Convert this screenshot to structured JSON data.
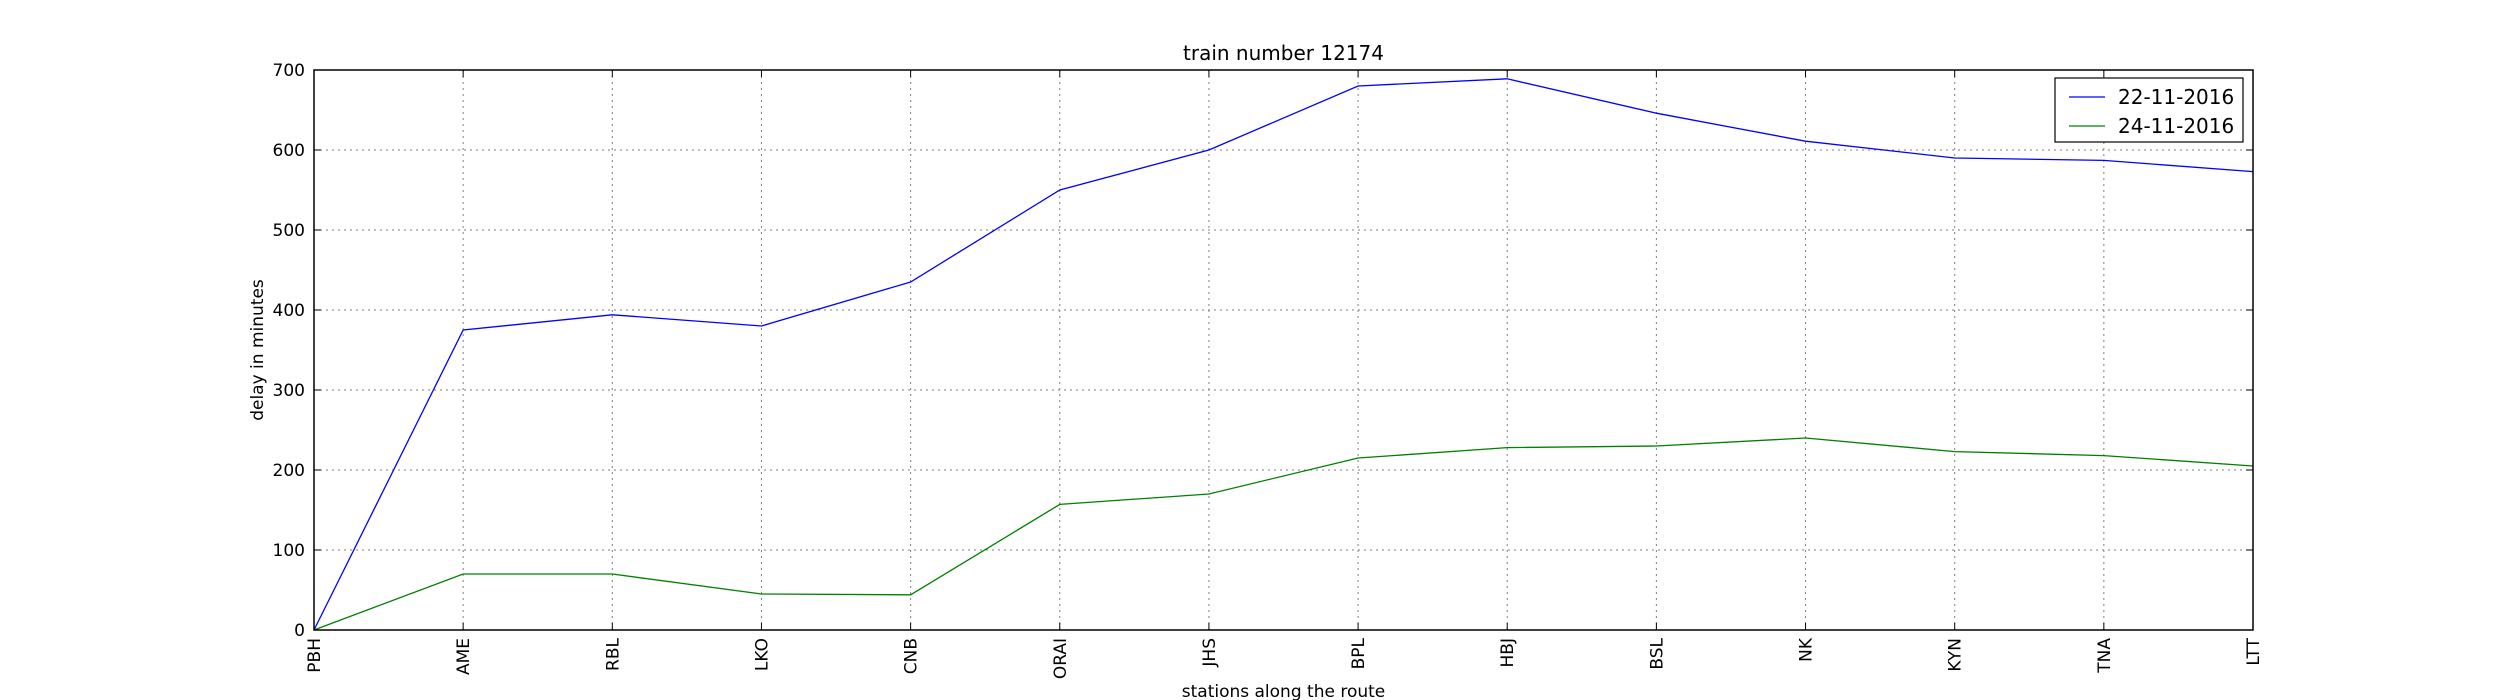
{
  "chart_data": {
    "type": "line",
    "title": "train number 12174",
    "xlabel": "stations along the route",
    "ylabel": "delay in minutes",
    "categories": [
      "PBH",
      "AME",
      "RBL",
      "LKO",
      "CNB",
      "ORAI",
      "JHS",
      "BPL",
      "HBJ",
      "BSL",
      "NK",
      "KYN",
      "TNA",
      "LTT"
    ],
    "ylim": [
      0,
      700
    ],
    "yticks": [
      0,
      100,
      200,
      300,
      400,
      500,
      600,
      700
    ],
    "grid": true,
    "legend_position": "top-right",
    "series": [
      {
        "name": "22-11-2016",
        "color": "#0000ff",
        "values": [
          0,
          375,
          394,
          380,
          435,
          550,
          600,
          680,
          689,
          646,
          611,
          590,
          587,
          573
        ]
      },
      {
        "name": "24-11-2016",
        "color": "#008000",
        "values": [
          0,
          70,
          70,
          45,
          44,
          157,
          170,
          215,
          228,
          230,
          240,
          223,
          218,
          205
        ]
      }
    ]
  }
}
